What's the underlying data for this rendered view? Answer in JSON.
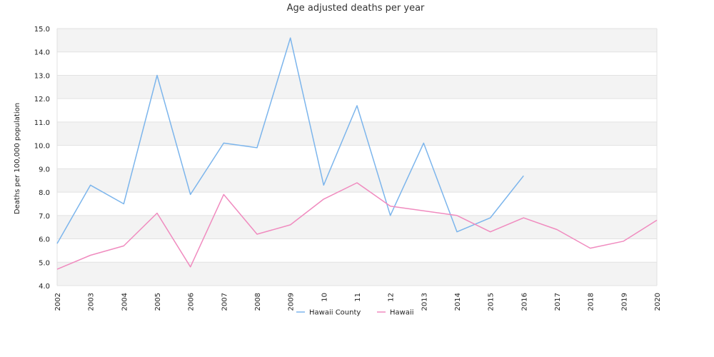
{
  "chart_data": {
    "type": "line",
    "title": "Age adjusted deaths per year",
    "xlabel": "",
    "ylabel": "Deaths per 100,000 population",
    "ylim": [
      4.0,
      15.0
    ],
    "yticks": [
      "4.0",
      "5.0",
      "6.0",
      "7.0",
      "8.0",
      "9.0",
      "10.0",
      "11.0",
      "12.0",
      "13.0",
      "14.0",
      "15.0"
    ],
    "categories": [
      "2002",
      "2003",
      "2004",
      "2005",
      "2006",
      "2007",
      "2008",
      "2009",
      "10",
      "11",
      "12",
      "2013",
      "2014",
      "2015",
      "2016",
      "2017",
      "2018",
      "2019",
      "2020"
    ],
    "grid": "alternating horizontal bands",
    "legend_position": "bottom",
    "series": [
      {
        "name": "Hawaii County",
        "color": "#7cb5ec",
        "values": [
          5.8,
          8.3,
          7.5,
          13.0,
          7.9,
          10.1,
          9.9,
          14.6,
          8.3,
          11.7,
          7.0,
          10.1,
          6.3,
          6.9,
          8.7,
          null,
          null,
          null,
          null
        ]
      },
      {
        "name": "Hawaii",
        "color": "#f08bbf",
        "values": [
          4.7,
          5.3,
          5.7,
          7.1,
          4.8,
          7.9,
          6.2,
          6.6,
          7.7,
          8.4,
          7.4,
          7.2,
          7.0,
          6.3,
          6.9,
          6.4,
          5.6,
          5.9,
          6.8
        ]
      }
    ]
  }
}
